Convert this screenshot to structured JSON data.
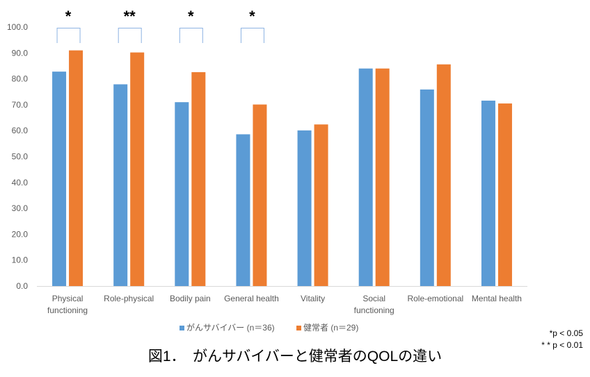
{
  "chart_data": {
    "type": "bar",
    "categories": [
      "Physical functioning",
      "Role-physical",
      "Bodily pain",
      "General health",
      "Vitality",
      "Social functioning",
      "Role-emotional",
      "Mental health"
    ],
    "series": [
      {
        "name": "がんサバイバー (n＝36)",
        "color": "#5B9BD5",
        "values": [
          82.8,
          77.9,
          71.0,
          58.6,
          60.1,
          84.0,
          75.9,
          71.6
        ]
      },
      {
        "name": "健常者 (n＝29)",
        "color": "#ED7D31",
        "values": [
          91.0,
          90.2,
          82.6,
          70.1,
          62.4,
          84.0,
          85.6,
          70.5
        ]
      }
    ],
    "ylim": [
      0,
      100
    ],
    "yticks": [
      "0.0",
      "10.0",
      "20.0",
      "30.0",
      "40.0",
      "50.0",
      "60.0",
      "70.0",
      "80.0",
      "90.0",
      "100.0"
    ],
    "grid": false,
    "legend": "bottom",
    "significance": [
      {
        "category": "Physical functioning",
        "label": "*"
      },
      {
        "category": "Role-physical",
        "label": "**"
      },
      {
        "category": "Bodily pain",
        "label": "*"
      },
      {
        "category": "General health",
        "label": "*"
      }
    ],
    "notes": [
      "*p < 0.05",
      "* * p < 0.01"
    ],
    "caption": "図1．　がんサバイバーと健常者のQOLの違い"
  }
}
